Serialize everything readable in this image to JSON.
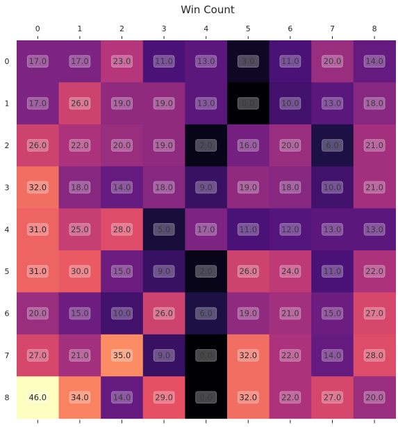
{
  "chart_data": {
    "type": "heatmap",
    "title": "Win Count",
    "x_categories": [
      "0",
      "1",
      "2",
      "3",
      "4",
      "5",
      "6",
      "7",
      "8"
    ],
    "y_categories": [
      "0",
      "1",
      "2",
      "3",
      "4",
      "5",
      "6",
      "7",
      "8"
    ],
    "values": [
      [
        17,
        17,
        23,
        11,
        13,
        3,
        11,
        20,
        14
      ],
      [
        17,
        26,
        19,
        19,
        13,
        0,
        10,
        13,
        18
      ],
      [
        26,
        22,
        20,
        19,
        2,
        16,
        20,
        6,
        21
      ],
      [
        32,
        18,
        14,
        18,
        9,
        19,
        18,
        10,
        21
      ],
      [
        31,
        25,
        28,
        5,
        17,
        11,
        12,
        13,
        13
      ],
      [
        31,
        30,
        15,
        9,
        2,
        26,
        24,
        11,
        22
      ],
      [
        20,
        15,
        10,
        26,
        6,
        19,
        21,
        15,
        27
      ],
      [
        27,
        21,
        35,
        9,
        0,
        32,
        22,
        14,
        28
      ],
      [
        46,
        34,
        14,
        29,
        0,
        32,
        22,
        27,
        20
      ]
    ],
    "value_format": "0.0",
    "colormap": "magma",
    "value_range": [
      0,
      46
    ],
    "x_ticks_position": "top-and-bottom",
    "grid": false
  }
}
